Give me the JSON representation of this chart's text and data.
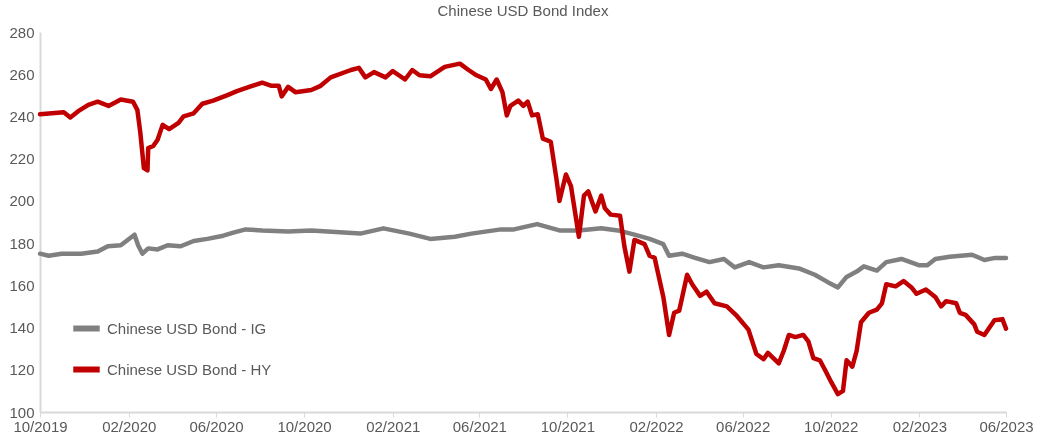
{
  "chart_data": {
    "type": "line",
    "title": "Chinese USD Bond Index",
    "series": [
      {
        "name": "Chinese USD Bond - IG",
        "color": "#808080",
        "x": [
          "2019-10-01",
          "2019-10-13",
          "2019-10-31",
          "2019-11-27",
          "2019-12-20",
          "2020-01-03",
          "2020-01-21",
          "2020-02-09",
          "2020-02-14",
          "2020-02-20",
          "2020-02-28",
          "2020-03-12",
          "2020-03-26",
          "2020-04-13",
          "2020-05-01",
          "2020-05-20",
          "2020-06-11",
          "2020-06-25",
          "2020-07-12",
          "2020-08-04",
          "2020-09-09",
          "2020-10-11",
          "2020-12-18",
          "2021-01-19",
          "2021-02-24",
          "2021-03-25",
          "2021-04-28",
          "2021-05-21",
          "2021-07-01",
          "2021-07-19",
          "2021-08-20",
          "2021-09-20",
          "2021-10-17",
          "2021-11-17",
          "2021-12-10",
          "2022-01-02",
          "2022-01-23",
          "2022-02-11",
          "2022-02-19",
          "2022-03-09",
          "2022-03-27",
          "2022-04-16",
          "2022-05-06",
          "2022-05-21",
          "2022-06-10",
          "2022-06-30",
          "2022-07-21",
          "2022-08-18",
          "2022-09-09",
          "2022-09-27",
          "2022-10-11",
          "2022-10-23",
          "2022-11-06",
          "2022-11-16",
          "2022-12-04",
          "2022-12-17",
          "2023-01-07",
          "2023-02-01",
          "2023-02-12",
          "2023-02-23",
          "2023-03-15",
          "2023-04-15",
          "2023-05-02",
          "2023-05-17",
          "2023-06-01"
        ],
        "values": [
          175,
          174,
          175,
          175,
          176,
          178.5,
          179,
          184,
          179,
          175,
          177.5,
          177,
          179,
          178.5,
          181,
          182,
          183.5,
          185,
          186.5,
          186,
          185.5,
          186,
          184.5,
          187,
          184.5,
          182,
          183,
          184.5,
          186.5,
          186.5,
          189,
          186,
          186,
          187,
          186,
          184,
          182,
          179.5,
          174,
          175,
          173,
          171,
          172.5,
          168.5,
          171,
          168.5,
          169.5,
          168,
          165,
          161.5,
          159,
          164,
          166.5,
          169,
          167,
          171,
          172.5,
          169.5,
          169.5,
          172.5,
          173.5,
          174.5,
          172,
          173,
          173
        ]
      },
      {
        "name": "Chinese USD Bond - HY",
        "color": "#c00000",
        "x": [
          "2019-10-01",
          "2019-11-03",
          "2019-11-12",
          "2019-11-23",
          "2019-12-07",
          "2019-12-20",
          "2020-01-04",
          "2020-01-21",
          "2020-02-07",
          "2020-02-13",
          "2020-02-17",
          "2020-02-22",
          "2020-02-27",
          "2020-02-28",
          "2020-03-06",
          "2020-03-12",
          "2020-03-19",
          "2020-03-28",
          "2020-04-10",
          "2020-04-17",
          "2020-05-01",
          "2020-05-13",
          "2020-05-28",
          "2020-06-16",
          "2020-06-30",
          "2020-07-17",
          "2020-08-04",
          "2020-08-17",
          "2020-08-27",
          "2020-08-31",
          "2020-09-09",
          "2020-09-19",
          "2020-10-11",
          "2020-10-24",
          "2020-11-07",
          "2020-12-05",
          "2020-12-16",
          "2020-12-25",
          "2021-01-06",
          "2021-01-22",
          "2021-02-01",
          "2021-02-18",
          "2021-02-28",
          "2021-03-10",
          "2021-03-25",
          "2021-04-14",
          "2021-05-05",
          "2021-05-17",
          "2021-05-28",
          "2021-06-10",
          "2021-06-17",
          "2021-06-25",
          "2021-07-03",
          "2021-07-09",
          "2021-07-14",
          "2021-07-25",
          "2021-08-01",
          "2021-08-07",
          "2021-08-13",
          "2021-08-21",
          "2021-08-28",
          "2021-09-08",
          "2021-09-16",
          "2021-09-20",
          "2021-09-29",
          "2021-10-06",
          "2021-10-17",
          "2021-10-24",
          "2021-10-30",
          "2021-11-09",
          "2021-11-17",
          "2021-11-22",
          "2021-11-30",
          "2021-12-13",
          "2021-12-19",
          "2021-12-26",
          "2022-01-02",
          "2022-01-16",
          "2022-01-23",
          "2022-01-30",
          "2022-02-11",
          "2022-02-19",
          "2022-02-26",
          "2022-03-05",
          "2022-03-16",
          "2022-03-23",
          "2022-04-03",
          "2022-04-12",
          "2022-04-23",
          "2022-05-10",
          "2022-05-24",
          "2022-06-09",
          "2022-06-20",
          "2022-06-30",
          "2022-07-06",
          "2022-07-21",
          "2022-07-28",
          "2022-08-04",
          "2022-08-13",
          "2022-08-24",
          "2022-08-31",
          "2022-09-07",
          "2022-09-16",
          "2022-09-23",
          "2022-10-02",
          "2022-10-11",
          "2022-10-18",
          "2022-10-23",
          "2022-10-31",
          "2022-11-06",
          "2022-11-12",
          "2022-11-23",
          "2022-12-04",
          "2022-12-11",
          "2022-12-17",
          "2022-12-30",
          "2023-01-10",
          "2023-01-21",
          "2023-01-28",
          "2023-02-10",
          "2023-02-23",
          "2023-03-03",
          "2023-03-10",
          "2023-03-24",
          "2023-03-29",
          "2023-04-06",
          "2023-04-18",
          "2023-04-22",
          "2023-05-02",
          "2023-05-16",
          "2023-05-27",
          "2023-06-01"
        ],
        "values": [
          241,
          242,
          239.5,
          242.5,
          245.5,
          247,
          245,
          248,
          247,
          243,
          232.5,
          215.5,
          214.5,
          225,
          226,
          229,
          236,
          234,
          237,
          240,
          241.5,
          246,
          247.5,
          250,
          252,
          254,
          256,
          254.5,
          254.5,
          249.5,
          254,
          251.5,
          252.5,
          254.5,
          258.5,
          262,
          263,
          258.5,
          261,
          258.5,
          261.5,
          257.5,
          262,
          259.5,
          259,
          263.5,
          265,
          262,
          259.5,
          257.5,
          253,
          257.5,
          251.5,
          240.5,
          245,
          247.5,
          245,
          247,
          240.5,
          241,
          229.5,
          228,
          210,
          200,
          212.5,
          207,
          183,
          202.5,
          204.5,
          195,
          202.5,
          196.5,
          193.5,
          193,
          178.5,
          166.5,
          181.5,
          179.5,
          174,
          173,
          154.5,
          136.5,
          147,
          148,
          165,
          160.5,
          155,
          157,
          151.5,
          150,
          145.5,
          139,
          127.5,
          125,
          128,
          123,
          129,
          136.5,
          135.5,
          136.5,
          133.5,
          125.5,
          124.5,
          120,
          114,
          108.5,
          110,
          124.5,
          121.5,
          129,
          142.5,
          147,
          148.5,
          151.5,
          160.5,
          159.5,
          162,
          159,
          156,
          158,
          154.5,
          150,
          152.5,
          151.5,
          147,
          146,
          141.5,
          138,
          136.5,
          143.5,
          144,
          139.5
        ]
      }
    ],
    "xlim": [
      "2019-10-01",
      "2023-06-01"
    ],
    "xticks": [
      {
        "value": "2019-10-01",
        "label": "10/2019"
      },
      {
        "value": "2020-02-01",
        "label": "02/2020"
      },
      {
        "value": "2020-06-01",
        "label": "06/2020"
      },
      {
        "value": "2020-10-01",
        "label": "10/2020"
      },
      {
        "value": "2021-02-01",
        "label": "02/2021"
      },
      {
        "value": "2021-06-01",
        "label": "06/2021"
      },
      {
        "value": "2021-10-01",
        "label": "10/2021"
      },
      {
        "value": "2022-02-01",
        "label": "02/2022"
      },
      {
        "value": "2022-06-01",
        "label": "06/2022"
      },
      {
        "value": "2022-10-01",
        "label": "10/2022"
      },
      {
        "value": "2023-02-01",
        "label": "02/2023"
      },
      {
        "value": "2023-06-01",
        "label": "06/2023"
      }
    ],
    "ylim": [
      100,
      280
    ],
    "yticks": [
      100,
      120,
      140,
      160,
      180,
      200,
      220,
      240,
      260,
      280
    ],
    "legend": "bottom left",
    "grid": false,
    "marker": "none",
    "line_style": "solid"
  }
}
